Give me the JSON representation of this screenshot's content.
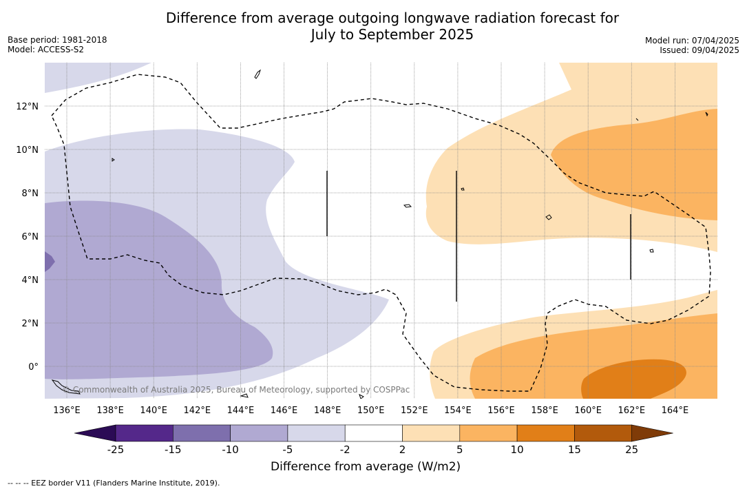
{
  "header": {
    "title_line1": "Difference from average outgoing longwave radiation forecast for",
    "title_line2": "July to September 2025",
    "base_period": "Base period: 1981-2018",
    "model": "Model: ACCESS-S2",
    "model_run": "Model run: 07/04/2025",
    "issued": "Issued: 09/04/2025"
  },
  "map": {
    "lon_ticks": [
      "136°E",
      "138°E",
      "140°E",
      "142°E",
      "144°E",
      "146°E",
      "148°E",
      "150°E",
      "152°E",
      "154°E",
      "156°E",
      "158°E",
      "160°E",
      "162°E",
      "164°E"
    ],
    "lat_ticks": [
      "12°N",
      "10°N",
      "8°N",
      "6°N",
      "4°N",
      "2°N",
      "0°"
    ],
    "copyright": "© Commonwealth of Australia 2025, Bureau of Meteorology, supported by COSPPac"
  },
  "colorbar": {
    "labels": [
      "-25",
      "-15",
      "-10",
      "-5",
      "-2",
      "2",
      "5",
      "10",
      "15",
      "25"
    ],
    "colors": [
      "#2b0b55",
      "#54288a",
      "#7e6fad",
      "#b0a9d2",
      "#d7d8ea",
      "#ffffff",
      "#fde0b5",
      "#fbb461",
      "#e17f18",
      "#b25a0c",
      "#7f3b08"
    ],
    "title": "Difference from average (W/m2)"
  },
  "footnote": "--  --  -- EEZ border V11 (Flanders Marine Institute, 2019)."
}
